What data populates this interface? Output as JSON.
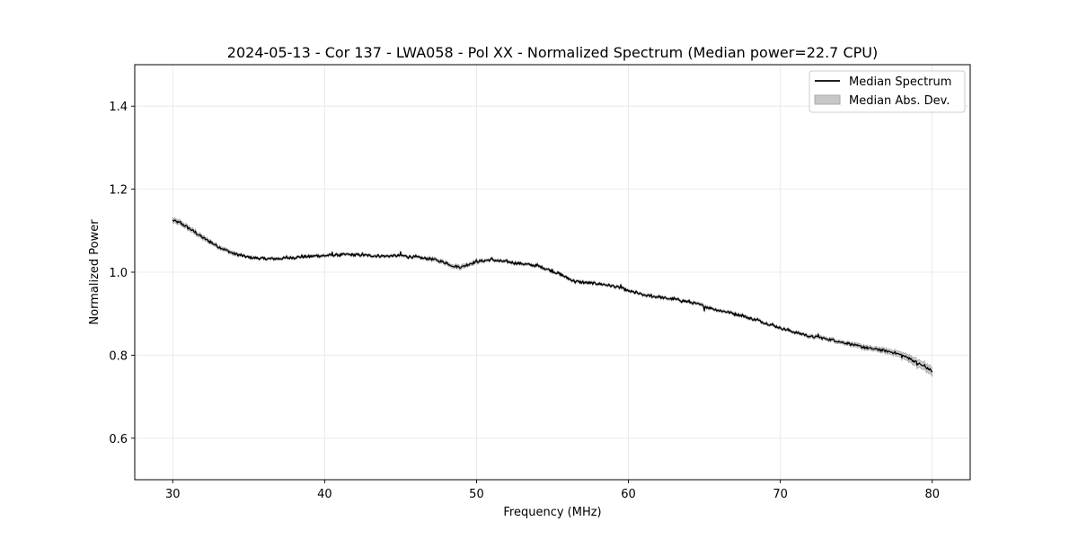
{
  "chart_data": {
    "type": "line",
    "title": "2024-05-13 - Cor 137 - LWA058 - Pol XX - Normalized Spectrum (Median power=22.7 CPU)",
    "xlabel": "Frequency (MHz)",
    "ylabel": "Normalized Power",
    "xlim": [
      27.5,
      82.5
    ],
    "ylim": [
      0.5,
      1.5
    ],
    "xticks": [
      30,
      40,
      50,
      60,
      70,
      80
    ],
    "yticks": [
      0.6,
      0.8,
      1.0,
      1.2,
      1.4
    ],
    "xtick_labels": [
      "30",
      "40",
      "50",
      "60",
      "70",
      "80"
    ],
    "ytick_labels": [
      "0.6",
      "0.8",
      "1.0",
      "1.2",
      "1.4"
    ],
    "grid": true,
    "legend_position": "top-right",
    "series": [
      {
        "name": "Median Spectrum",
        "kind": "line",
        "color": "#000000",
        "x": [
          30,
          30.5,
          31,
          31.5,
          32,
          32.5,
          33,
          33.5,
          34,
          34.5,
          35,
          35.5,
          36,
          36.5,
          37,
          37.5,
          38,
          38.5,
          39,
          39.5,
          40,
          40.5,
          41,
          41.5,
          42,
          42.5,
          43,
          43.5,
          44,
          44.5,
          45,
          45.5,
          46,
          46.5,
          47,
          47.5,
          48,
          48.5,
          49,
          49.5,
          50,
          50.5,
          51,
          51.5,
          52,
          52.5,
          53,
          53.5,
          54,
          54.5,
          55,
          55.5,
          56,
          56.5,
          57,
          57.5,
          58,
          58.5,
          59,
          59.5,
          60,
          60.5,
          61,
          61.5,
          62,
          62.5,
          63,
          63.5,
          64,
          64.5,
          65,
          65.5,
          66,
          66.5,
          67,
          67.5,
          68,
          68.5,
          69,
          69.5,
          70,
          70.5,
          71,
          71.5,
          72,
          72.5,
          73,
          73.5,
          74,
          74.5,
          75,
          75.5,
          76,
          76.5,
          77,
          77.5,
          78,
          78.5,
          79,
          79.5,
          80
        ],
        "y": [
          1.125,
          1.118,
          1.108,
          1.095,
          1.083,
          1.072,
          1.062,
          1.053,
          1.045,
          1.04,
          1.036,
          1.034,
          1.033,
          1.032,
          1.033,
          1.034,
          1.036,
          1.037,
          1.038,
          1.039,
          1.04,
          1.041,
          1.042,
          1.042,
          1.042,
          1.041,
          1.04,
          1.039,
          1.039,
          1.039,
          1.04,
          1.038,
          1.036,
          1.034,
          1.032,
          1.028,
          1.022,
          1.015,
          1.012,
          1.02,
          1.025,
          1.028,
          1.03,
          1.027,
          1.025,
          1.023,
          1.02,
          1.018,
          1.015,
          1.01,
          1.002,
          0.996,
          0.985,
          0.978,
          0.975,
          0.974,
          0.972,
          0.97,
          0.966,
          0.962,
          0.955,
          0.95,
          0.945,
          0.942,
          0.94,
          0.937,
          0.935,
          0.932,
          0.928,
          0.924,
          0.918,
          0.912,
          0.908,
          0.904,
          0.9,
          0.895,
          0.889,
          0.884,
          0.878,
          0.872,
          0.866,
          0.86,
          0.855,
          0.85,
          0.845,
          0.843,
          0.84,
          0.836,
          0.832,
          0.828,
          0.823,
          0.819,
          0.816,
          0.813,
          0.81,
          0.806,
          0.8,
          0.792,
          0.782,
          0.772,
          0.762
        ],
        "wiggle": [
          0,
          0.003,
          -0.002,
          0.002,
          -0.001,
          0.002,
          -0.002,
          0.001,
          -0.001,
          0.002,
          -0.001,
          0.001,
          -0.002,
          0.002,
          -0.001,
          0.003,
          -0.002,
          0.002,
          -0.001,
          0.004,
          -0.002,
          0.005,
          -0.002,
          0.003,
          -0.002,
          0.003,
          -0.001,
          0.002,
          -0.002,
          0.002,
          0.006,
          -0.002,
          0.002,
          -0.002,
          0.001,
          -0.002,
          0.002,
          -0.004,
          0.002,
          -0.002,
          0.003,
          -0.002,
          0.003,
          -0.001,
          0.002,
          -0.002,
          0.002,
          -0.001,
          0.003,
          -0.003,
          0.004,
          -0.003,
          0.002,
          -0.002,
          0.002,
          -0.002,
          0.002,
          -0.001,
          0.002,
          0.008,
          -0.003,
          0.003,
          -0.002,
          0.003,
          0.005,
          -0.002,
          0.002,
          -0.002,
          0.002,
          -0.002,
          -0.008,
          0.003,
          -0.002,
          0.002,
          -0.002,
          0.003,
          -0.002,
          0.003,
          -0.002,
          0.002,
          -0.002,
          0.002,
          -0.002,
          0.003,
          -0.002,
          0.009,
          -0.002,
          0.002,
          -0.002,
          0.002,
          -0.002,
          0.002,
          -0.003,
          0.003,
          -0.002,
          0.003,
          -0.003,
          0.004,
          -0.006,
          0.005,
          -0.003
        ],
        "mad": [
          0.006,
          0.005,
          0.005,
          0.005,
          0.005,
          0.004,
          0.004,
          0.004,
          0.004,
          0.003,
          0.003,
          0.003,
          0.003,
          0.003,
          0.003,
          0.003,
          0.003,
          0.003,
          0.003,
          0.003,
          0.003,
          0.003,
          0.003,
          0.003,
          0.003,
          0.003,
          0.003,
          0.003,
          0.003,
          0.003,
          0.003,
          0.003,
          0.003,
          0.003,
          0.004,
          0.004,
          0.004,
          0.004,
          0.005,
          0.004,
          0.004,
          0.003,
          0.003,
          0.003,
          0.003,
          0.003,
          0.003,
          0.003,
          0.003,
          0.003,
          0.003,
          0.003,
          0.003,
          0.003,
          0.003,
          0.003,
          0.003,
          0.003,
          0.003,
          0.003,
          0.003,
          0.003,
          0.003,
          0.003,
          0.003,
          0.003,
          0.003,
          0.003,
          0.003,
          0.003,
          0.004,
          0.003,
          0.003,
          0.003,
          0.003,
          0.003,
          0.003,
          0.003,
          0.003,
          0.003,
          0.003,
          0.003,
          0.003,
          0.003,
          0.004,
          0.004,
          0.004,
          0.004,
          0.004,
          0.004,
          0.005,
          0.005,
          0.005,
          0.005,
          0.006,
          0.006,
          0.007,
          0.008,
          0.009,
          0.009,
          0.01
        ]
      }
    ],
    "legend": [
      {
        "label": "Median Spectrum",
        "kind": "line",
        "color": "#000000"
      },
      {
        "label": "Median Abs. Dev.",
        "kind": "patch",
        "color": "#c7c7c7"
      }
    ]
  }
}
